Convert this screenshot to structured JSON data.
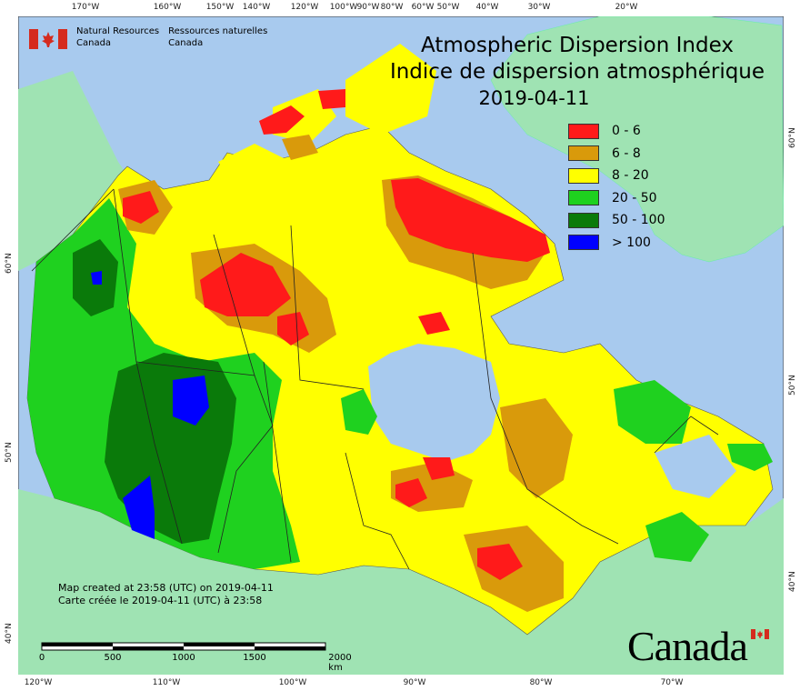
{
  "header": {
    "agency_en_line1": "Natural Resources",
    "agency_en_line2": "Canada",
    "agency_fr_line1": "Ressources naturelles",
    "agency_fr_line2": "Canada",
    "title_en": "Atmospheric Dispersion Index",
    "title_fr": "Indice de dispersion atmosphérique",
    "date": "2019-04-11"
  },
  "legend": [
    {
      "label": "0 - 6",
      "color": "#ff1a1a"
    },
    {
      "label": "6 - 8",
      "color": "#d99a0b"
    },
    {
      "label": "8 - 20",
      "color": "#ffff00"
    },
    {
      "label": "20 - 50",
      "color": "#1fd11f"
    },
    {
      "label": "50 - 100",
      "color": "#0a7a0a"
    },
    {
      "label": "> 100",
      "color": "#0000ff"
    }
  ],
  "colors": {
    "water": "#a8caee",
    "foreign_land": "#9fe3b3",
    "border": "#333333"
  },
  "graticule": {
    "top": [
      "170°W",
      "160°W",
      "150°W",
      "140°W",
      "120°W",
      "100°W",
      "90°W",
      "80°W",
      "60°W",
      "50°W",
      "40°W",
      "30°W",
      "20°W"
    ],
    "bottom": [
      "120°W",
      "110°W",
      "100°W",
      "90°W",
      "80°W",
      "70°W"
    ],
    "left": [
      "60°N",
      "50°N",
      "40°N"
    ],
    "right": [
      "60°N",
      "50°N",
      "40°N"
    ]
  },
  "credits": {
    "line_en": "Map created at 23:58 (UTC) on 2019-04-11",
    "line_fr": "Carte créée le 2019-04-11 (UTC) à 23:58"
  },
  "scale_bar": {
    "labels": [
      "0",
      "500",
      "1000",
      "1500",
      "2000 km"
    ]
  },
  "wordmark": "Canada"
}
